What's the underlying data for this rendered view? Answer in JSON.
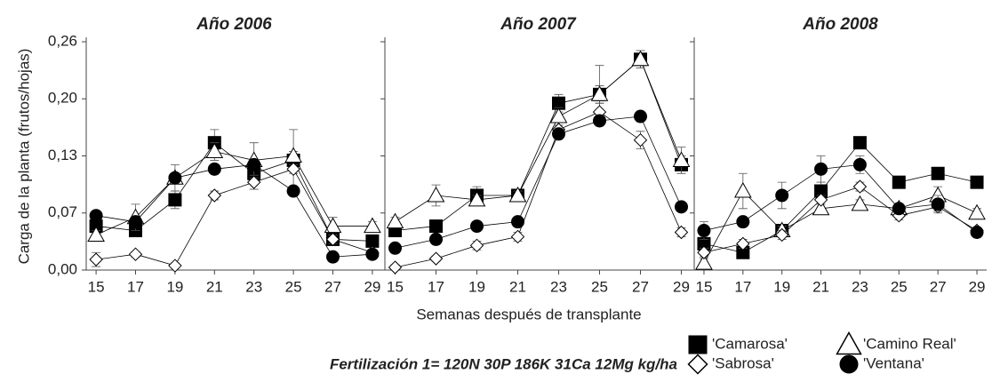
{
  "y_label": "Carga de la planta (frutos/hojas)",
  "x_label": "Semanas después de transplante",
  "note": "Fertilización 1= 120N 30P 186K 31Ca 12Mg kg/ha",
  "chart_data": [
    {
      "type": "line",
      "title": "Año 2006",
      "x": [
        15,
        17,
        19,
        21,
        23,
        25,
        27,
        29
      ],
      "xlim": [
        14.5,
        29.5
      ],
      "xticks": [
        15,
        17,
        19,
        21,
        23,
        25,
        27,
        29
      ],
      "ylim": [
        0,
        0.26
      ],
      "yticks": [
        {
          "value": 0,
          "label": "0,00"
        },
        {
          "value": 0.065,
          "label": "0,07"
        },
        {
          "value": 0.13,
          "label": "0,13"
        },
        {
          "value": 0.195,
          "label": "0,20"
        },
        {
          "value": 0.26,
          "label": "0,26"
        }
      ],
      "series": [
        {
          "name": "'Camarosa'",
          "marker": "square",
          "color": "#000000",
          "values": [
            0.05,
            0.045,
            0.08,
            0.145,
            0.11,
            0.125,
            0.035,
            0.033
          ],
          "errors": [
            0.005,
            0.005,
            0.01,
            0.015,
            0.01,
            0.035,
            0.005,
            0.005
          ]
        },
        {
          "name": "'Camino Real'",
          "marker": "triangle",
          "color": "#000000",
          "values": [
            0.04,
            0.06,
            0.105,
            0.135,
            0.125,
            0.13,
            0.05,
            0.05
          ],
          "errors": [
            0.005,
            0.015,
            0.015,
            0.01,
            0.02,
            0.005,
            0.01,
            0.005
          ]
        },
        {
          "name": "'Sabrosa'",
          "marker": "diamond",
          "color": "#000000",
          "values": [
            0.012,
            0.018,
            0.005,
            0.085,
            0.1,
            0.115,
            0.035,
            0.02
          ],
          "errors": [
            0.008,
            0.003,
            0.003,
            0.005,
            0.008,
            0.005,
            0.005,
            0.003
          ]
        },
        {
          "name": "'Ventana'",
          "marker": "circle",
          "color": "#000000",
          "values": [
            0.062,
            0.055,
            0.105,
            0.115,
            0.12,
            0.09,
            0.015,
            0.018
          ],
          "errors": [
            0.005,
            0.005,
            0.005,
            0.005,
            0.005,
            0.005,
            0.003,
            0.003
          ]
        }
      ]
    },
    {
      "type": "line",
      "title": "Año 2007",
      "x": [
        15,
        17,
        19,
        21,
        23,
        25,
        27,
        29
      ],
      "xlim": [
        14.5,
        29.5
      ],
      "xticks": [
        15,
        17,
        19,
        21,
        23,
        25,
        27,
        29
      ],
      "ylim": [
        0,
        0.26
      ],
      "yticks": [
        0,
        0.065,
        0.13,
        0.195,
        0.26
      ],
      "series": [
        {
          "name": "'Camarosa'",
          "marker": "square",
          "color": "#000000",
          "values": [
            0.045,
            0.05,
            0.085,
            0.085,
            0.19,
            0.2,
            0.24,
            0.12
          ],
          "errors": [
            0.005,
            0.005,
            0.01,
            0.005,
            0.01,
            0.01,
            0.01,
            0.01
          ]
        },
        {
          "name": "'Camino Real'",
          "marker": "triangle",
          "color": "#000000",
          "values": [
            0.055,
            0.085,
            0.08,
            0.085,
            0.175,
            0.2,
            0.24,
            0.125
          ],
          "errors": [
            0.005,
            0.012,
            0.005,
            0.005,
            0.01,
            0.033,
            0.01,
            0.015
          ]
        },
        {
          "name": "'Sabrosa'",
          "marker": "diamond",
          "color": "#000000",
          "values": [
            0.003,
            0.013,
            0.028,
            0.038,
            0.16,
            0.18,
            0.148,
            0.043
          ],
          "errors": [
            0.003,
            0.003,
            0.005,
            0.005,
            0.005,
            0.01,
            0.01,
            0.005
          ]
        },
        {
          "name": "'Ventana'",
          "marker": "circle",
          "color": "#000000",
          "values": [
            0.025,
            0.035,
            0.05,
            0.055,
            0.155,
            0.17,
            0.175,
            0.072
          ],
          "errors": [
            0.003,
            0.005,
            0.003,
            0.003,
            0.005,
            0.005,
            0.003,
            0.003
          ]
        }
      ]
    },
    {
      "type": "line",
      "title": "Año 2008",
      "x": [
        15,
        17,
        19,
        21,
        23,
        25,
        27,
        29
      ],
      "xlim": [
        14.5,
        29.5
      ],
      "xticks": [
        15,
        17,
        19,
        21,
        23,
        25,
        27,
        29
      ],
      "ylim": [
        0,
        0.26
      ],
      "yticks": [
        0,
        0.065,
        0.13,
        0.195,
        0.26
      ],
      "series": [
        {
          "name": "'Camarosa'",
          "marker": "square",
          "color": "#000000",
          "values": [
            0.03,
            0.02,
            0.045,
            0.09,
            0.145,
            0.1,
            0.11,
            0.1
          ],
          "errors": [
            0.005,
            0.005,
            0.005,
            0.01,
            0.005,
            0.005,
            0.005,
            0.005
          ]
        },
        {
          "name": "'Camino Real'",
          "marker": "triangle",
          "color": "#000000",
          "values": [
            0.008,
            0.09,
            0.045,
            0.07,
            0.075,
            0.07,
            0.085,
            0.065
          ],
          "errors": [
            0.005,
            0.02,
            0.005,
            0.005,
            0.005,
            0.005,
            0.01,
            0.005
          ]
        },
        {
          "name": "'Sabrosa'",
          "marker": "diamond",
          "color": "#000000",
          "values": [
            0.02,
            0.03,
            0.04,
            0.08,
            0.095,
            0.062,
            0.072,
            0.045
          ],
          "errors": [
            0.005,
            0.005,
            0.005,
            0.005,
            0.005,
            0.005,
            0.005,
            0.003
          ]
        },
        {
          "name": "'Ventana'",
          "marker": "circle",
          "color": "#000000",
          "values": [
            0.045,
            0.055,
            0.085,
            0.115,
            0.12,
            0.07,
            0.075,
            0.043
          ],
          "errors": [
            0.01,
            0.005,
            0.015,
            0.015,
            0.01,
            0.005,
            0.01,
            0.003
          ]
        }
      ]
    }
  ]
}
